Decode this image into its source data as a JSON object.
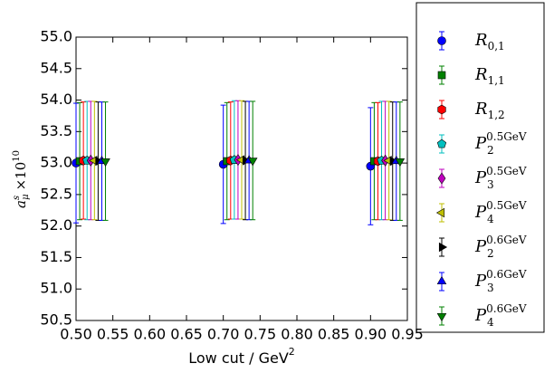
{
  "chart_data": {
    "type": "errorbar",
    "xlabel": {
      "text": "Low cut / GeV",
      "sup": "2"
    },
    "ylabel": {
      "text": "a",
      "sub": "μ",
      "sup": "s",
      "suffix": "×10",
      "suffix_sup": "10"
    },
    "xlim": [
      0.5,
      0.95
    ],
    "ylim": [
      50.5,
      55.0
    ],
    "xticks": [
      {
        "value": 0.5,
        "label": "0.50"
      },
      {
        "value": 0.55,
        "label": "0.55"
      },
      {
        "value": 0.6,
        "label": "0.60"
      },
      {
        "value": 0.65,
        "label": "0.65"
      },
      {
        "value": 0.7,
        "label": "0.70"
      },
      {
        "value": 0.75,
        "label": "0.75"
      },
      {
        "value": 0.8,
        "label": "0.80"
      },
      {
        "value": 0.85,
        "label": "0.85"
      },
      {
        "value": 0.9,
        "label": "0.90"
      },
      {
        "value": 0.95,
        "label": "0.95"
      }
    ],
    "yticks": [
      50.5,
      {
        "value": 51,
        "label": "51.0"
      },
      51.5,
      {
        "value": 52,
        "label": "52.0"
      },
      52.5,
      {
        "value": 53,
        "label": "53.0"
      },
      53.5,
      {
        "value": 54,
        "label": "54.0"
      },
      54.5,
      {
        "value": 55,
        "label": "55.0"
      }
    ],
    "legend": "outside-right",
    "series": [
      {
        "name": "R",
        "sub": "0,1",
        "color": "#0000ff",
        "marker": "circle",
        "x": [
          0.5,
          0.7,
          0.9
        ],
        "values": [
          53.0,
          52.98,
          52.95
        ],
        "errors": [
          0.95,
          0.94,
          0.93
        ]
      },
      {
        "name": "R",
        "sub": "1,1",
        "color": "#008000",
        "marker": "square",
        "x": [
          0.505,
          0.705,
          0.905
        ],
        "values": [
          53.03,
          53.03,
          53.03
        ],
        "errors": [
          0.93,
          0.93,
          0.93
        ]
      },
      {
        "name": "R",
        "sub": "1,2",
        "color": "#ff0000",
        "marker": "hexagon",
        "x": [
          0.51,
          0.71,
          0.91
        ],
        "values": [
          53.04,
          53.04,
          53.03
        ],
        "errors": [
          0.93,
          0.93,
          0.93
        ]
      },
      {
        "name": "P",
        "sub": "2",
        "sup": "0.5GeV",
        "color": "#00bfbf",
        "marker": "pentagon",
        "x": [
          0.515,
          0.715,
          0.915
        ],
        "values": [
          53.04,
          53.05,
          53.04
        ],
        "errors": [
          0.94,
          0.94,
          0.94
        ]
      },
      {
        "name": "P",
        "sub": "3",
        "sup": "0.5GeV",
        "color": "#bf00bf",
        "marker": "diamond",
        "x": [
          0.52,
          0.72,
          0.92
        ],
        "values": [
          53.04,
          53.05,
          53.04
        ],
        "errors": [
          0.94,
          0.94,
          0.94
        ]
      },
      {
        "name": "P",
        "sub": "4",
        "sup": "0.5GeV",
        "color": "#bfbf00",
        "marker": "triangle-left",
        "x": [
          0.525,
          0.725,
          0.925
        ],
        "values": [
          53.04,
          53.05,
          53.04
        ],
        "errors": [
          0.94,
          0.94,
          0.94
        ]
      },
      {
        "name": "P",
        "sub": "2",
        "sup": "0.6GeV",
        "color": "#000000",
        "marker": "triangle-right",
        "x": [
          0.53,
          0.73,
          0.93
        ],
        "values": [
          53.03,
          53.04,
          53.03
        ],
        "errors": [
          0.94,
          0.94,
          0.94
        ]
      },
      {
        "name": "P",
        "sub": "3",
        "sup": "0.6GeV",
        "color": "#0000ff",
        "marker": "triangle-up",
        "x": [
          0.535,
          0.735,
          0.935
        ],
        "values": [
          53.03,
          53.04,
          53.03
        ],
        "errors": [
          0.94,
          0.94,
          0.94
        ]
      },
      {
        "name": "P",
        "sub": "4",
        "sup": "0.6GeV",
        "color": "#008000",
        "marker": "triangle-down",
        "x": [
          0.54,
          0.74,
          0.94
        ],
        "values": [
          53.03,
          53.04,
          53.03
        ],
        "errors": [
          0.94,
          0.94,
          0.94
        ]
      }
    ]
  }
}
